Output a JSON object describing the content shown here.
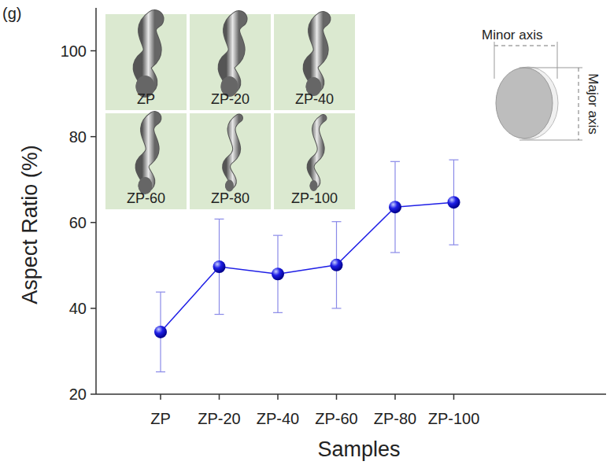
{
  "chart_data": {
    "type": "line",
    "panel_label": "(g)",
    "x_label": "Samples",
    "y_label": "Aspect Ratio (%)",
    "categories": [
      "ZP",
      "ZP-20",
      "ZP-40",
      "ZP-60",
      "ZP-80",
      "ZP-100"
    ],
    "series": [
      {
        "name": "Aspect Ratio",
        "color": "#1f1fe6",
        "marker": "circle",
        "line_style": "solid",
        "values": [
          34.5,
          49.7,
          48.0,
          50.1,
          63.6,
          64.7
        ],
        "errors": [
          9.3,
          11.1,
          9.0,
          10.1,
          10.6,
          9.9
        ]
      }
    ],
    "ylim": [
      20,
      110
    ],
    "yticks": [
      20,
      40,
      60,
      80,
      100
    ],
    "grid": false,
    "inset_labels": [
      "ZP",
      "ZP-20",
      "ZP-40",
      "ZP-60",
      "ZP-80",
      "ZP-100"
    ],
    "schematic_labels": {
      "minor": "Minor axis",
      "major": "Major axis"
    }
  }
}
